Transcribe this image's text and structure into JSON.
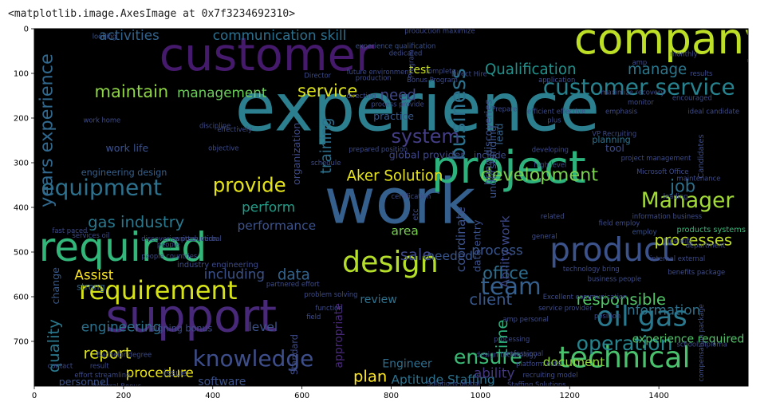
{
  "output": {
    "repr": "<matplotlib.image.AxesImage at 0x7f3234692310>"
  },
  "plot": {
    "background_color": "#000000",
    "x_ticks": [
      "0",
      "200",
      "400",
      "600",
      "800",
      "1000",
      "1200",
      "1400"
    ],
    "y_ticks": [
      "0",
      "100",
      "200",
      "300",
      "400",
      "500",
      "600",
      "700"
    ],
    "x_tick_values": [
      0,
      200,
      400,
      600,
      800,
      1000,
      1200,
      1400
    ],
    "y_tick_values": [
      0,
      100,
      200,
      300,
      400,
      500,
      600,
      700
    ],
    "xlim": [
      0,
      1600
    ],
    "ylim": [
      800,
      0
    ]
  },
  "wordcloud": {
    "words": [
      {
        "text": "experience",
        "color": "#2c7f8e"
      },
      {
        "text": "work",
        "color": "#355f8d"
      },
      {
        "text": "customer",
        "color": "#45196c"
      },
      {
        "text": "company",
        "color": "#bddf26"
      },
      {
        "text": "project",
        "color": "#2db27d"
      },
      {
        "text": "support",
        "color": "#482878"
      },
      {
        "text": "required",
        "color": "#32b67a"
      },
      {
        "text": "product",
        "color": "#3b528b"
      },
      {
        "text": "requirement",
        "color": "#d5e21a"
      },
      {
        "text": "design",
        "color": "#b5de2b"
      },
      {
        "text": "technical",
        "color": "#4ac16d"
      },
      {
        "text": "knowledge",
        "color": "#3d4e8a"
      },
      {
        "text": "customer service",
        "color": "#26828e"
      },
      {
        "text": "oil gas",
        "color": "#2a788e"
      },
      {
        "text": "equipment",
        "color": "#2c728e"
      },
      {
        "text": "provide",
        "color": "#e5e419"
      },
      {
        "text": "Manager",
        "color": "#a2da37"
      },
      {
        "text": "team",
        "color": "#355f8d"
      },
      {
        "text": "operation",
        "color": "#25848e"
      },
      {
        "text": "ensure",
        "color": "#3aba76"
      },
      {
        "text": "business",
        "color": "#2c718e"
      },
      {
        "text": "maintain",
        "color": "#8ed645"
      },
      {
        "text": "management",
        "color": "#6ccd5a"
      },
      {
        "text": "communication skill",
        "color": "#2d708e"
      },
      {
        "text": "activities",
        "color": "#33638d"
      },
      {
        "text": "service",
        "color": "#dde318"
      },
      {
        "text": "Qualification",
        "color": "#21918c"
      },
      {
        "text": "manage",
        "color": "#2a788e"
      },
      {
        "text": "need",
        "color": "#3f4889"
      },
      {
        "text": "system",
        "color": "#433e85"
      },
      {
        "text": "training",
        "color": "#2d708e"
      },
      {
        "text": "Aker Solution",
        "color": "#e7e419"
      },
      {
        "text": "development",
        "color": "#7ad151"
      },
      {
        "text": "gas industry",
        "color": "#2a788e"
      },
      {
        "text": "perform",
        "color": "#1f9e89"
      },
      {
        "text": "performance",
        "color": "#3b528b"
      },
      {
        "text": "sale",
        "color": "#3e4989"
      },
      {
        "text": "needed",
        "color": "#39568c"
      },
      {
        "text": "area",
        "color": "#7ad151"
      },
      {
        "text": "process",
        "color": "#39568c"
      },
      {
        "text": "office",
        "color": "#2e6e8e"
      },
      {
        "text": "processes",
        "color": "#c2df23"
      },
      {
        "text": "responsible",
        "color": "#52c569"
      },
      {
        "text": "client",
        "color": "#38588c"
      },
      {
        "text": "Assist",
        "color": "#fde725"
      },
      {
        "text": "including",
        "color": "#3b528b"
      },
      {
        "text": "data",
        "color": "#32648e"
      },
      {
        "text": "job",
        "color": "#2d708e"
      },
      {
        "text": "report",
        "color": "#dde318"
      },
      {
        "text": "engineering",
        "color": "#2c728e"
      },
      {
        "text": "procedure",
        "color": "#eae51a"
      },
      {
        "text": "information",
        "color": "#2c728e"
      },
      {
        "text": "level",
        "color": "#3b528b"
      },
      {
        "text": "review",
        "color": "#2c728e"
      },
      {
        "text": "quality",
        "color": "#2a788e"
      },
      {
        "text": "software",
        "color": "#3b528b"
      },
      {
        "text": "document",
        "color": "#93d741"
      },
      {
        "text": "plan",
        "color": "#fde725"
      },
      {
        "text": "Aptitude Staffing",
        "color": "#2c728e"
      },
      {
        "text": "ability",
        "color": "#453882"
      },
      {
        "text": "Engineer",
        "color": "#2e6e8e"
      },
      {
        "text": "time",
        "color": "#2db27d"
      },
      {
        "text": "Ability work",
        "color": "#3e4989"
      },
      {
        "text": "experience required",
        "color": "#52c569"
      },
      {
        "text": "years experience",
        "color": "#31688e"
      },
      {
        "text": "practice",
        "color": "#38598c"
      },
      {
        "text": "include",
        "color": "#3e4c8a"
      },
      {
        "text": "coordinate",
        "color": "#3b528b"
      },
      {
        "text": "data entry",
        "color": "#3b528b"
      },
      {
        "text": "organization",
        "color": "#3e4989"
      },
      {
        "text": "tool",
        "color": "#3e4c8a"
      },
      {
        "text": "planning",
        "color": "#2c728e"
      },
      {
        "text": "understanding",
        "color": "#3b528b"
      },
      {
        "text": "lead",
        "color": "#32648e"
      },
      {
        "text": "global provider",
        "color": "#3f4788"
      },
      {
        "text": "test",
        "color": "#c8e020"
      },
      {
        "text": "work life",
        "color": "#3b528b"
      },
      {
        "text": "engineering design",
        "color": "#35608d"
      },
      {
        "text": "industry engineering",
        "color": "#3e4c8a"
      },
      {
        "text": "people countries",
        "color": "#3e4c8a"
      },
      {
        "text": "change",
        "color": "#38598c"
      },
      {
        "text": "strong",
        "color": "#31688e"
      },
      {
        "text": "appropriate",
        "color": "#482878"
      },
      {
        "text": "Standard",
        "color": "#3e4c8a"
      },
      {
        "text": "issue",
        "color": "#3e4c8a"
      },
      {
        "text": "personnel",
        "color": "#3b528b"
      },
      {
        "text": "signing bonus",
        "color": "#3e4c8a"
      },
      {
        "text": "products systems",
        "color": "#37b878"
      },
      {
        "text": "looking",
        "color": "#3b528b"
      },
      {
        "text": "production maximize",
        "color": "#3e4c8a"
      },
      {
        "text": "experience qualification",
        "color": "#3b528b"
      },
      {
        "text": "employ",
        "color": "#3b528b"
      },
      {
        "text": "directing",
        "color": "#3e4c8a"
      },
      {
        "text": "effectively",
        "color": "#3e4c8a"
      },
      {
        "text": "maximize recovery",
        "color": "#3e4c8a"
      },
      {
        "text": "technology bring",
        "color": "#3e4c8a"
      },
      {
        "text": "business people",
        "color": "#3e4c8a"
      },
      {
        "text": "field employ",
        "color": "#3e4c8a"
      },
      {
        "text": "design technology",
        "color": "#3e4c8a"
      },
      {
        "text": "people",
        "color": "#3e4c8a"
      },
      {
        "text": "emphasis",
        "color": "#3e4c8a"
      },
      {
        "text": "compensation package",
        "color": "#3e4c8a"
      },
      {
        "text": "Solutions global",
        "color": "#3e4c8a"
      },
      {
        "text": "recruiting model",
        "color": "#3e4c8a"
      },
      {
        "text": "internal external",
        "color": "#3e4c8a"
      },
      {
        "text": "benefits package",
        "color": "#3e4c8a"
      },
      {
        "text": "high level",
        "color": "#3e4c8a"
      },
      {
        "text": "bring discoveries",
        "color": "#3b528b"
      },
      {
        "text": "developing",
        "color": "#3e4c8a"
      },
      {
        "text": "prepared position",
        "color": "#3e4c8a"
      },
      {
        "text": "maintenance",
        "color": "#3e4c8a"
      },
      {
        "text": "process provide",
        "color": "#3e4c8a"
      },
      {
        "text": "Direct Hire",
        "color": "#3e4c8a"
      },
      {
        "text": "future environment",
        "color": "#3e4c8a"
      },
      {
        "text": "Bonus Program",
        "color": "#3e4c8a"
      },
      {
        "text": "discoveries production",
        "color": "#3e4c8a"
      },
      {
        "text": "written verbal",
        "color": "#3e4c8a"
      },
      {
        "text": "services oil",
        "color": "#3e4c8a"
      },
      {
        "text": "fast paced",
        "color": "#3e4c8a"
      },
      {
        "text": "monitor",
        "color": "#3e4c8a"
      },
      {
        "text": "plus",
        "color": "#3e4c8a"
      },
      {
        "text": "identify",
        "color": "#3e4c8a"
      },
      {
        "text": "department",
        "color": "#3e4c8a"
      },
      {
        "text": "Excellent communication",
        "color": "#3e4c8a"
      },
      {
        "text": "service provider",
        "color": "#3e4c8a"
      },
      {
        "text": "position",
        "color": "#3e4c8a"
      },
      {
        "text": "Staffing Solutions",
        "color": "#3e4c8a"
      },
      {
        "text": "processing",
        "color": "#3e4c8a"
      },
      {
        "text": "professional",
        "color": "#3e4c8a"
      },
      {
        "text": "platform cuts",
        "color": "#3e4c8a"
      },
      {
        "text": "Bachelor degree",
        "color": "#3e4c8a"
      },
      {
        "text": "effort streamline",
        "color": "#3e4c8a"
      },
      {
        "text": "Referral Bonus",
        "color": "#3e4c8a"
      },
      {
        "text": "contact",
        "color": "#3e4c8a"
      },
      {
        "text": "result",
        "color": "#3e4c8a"
      },
      {
        "text": "partnered effort",
        "color": "#3e4c8a"
      },
      {
        "text": "problem solving",
        "color": "#3e4c8a"
      },
      {
        "text": "function",
        "color": "#3e4c8a"
      },
      {
        "text": "field",
        "color": "#3e4c8a"
      },
      {
        "text": "amp personal",
        "color": "#3e4c8a"
      },
      {
        "text": "school diploma",
        "color": "#3e4c8a"
      },
      {
        "text": "application",
        "color": "#3e4c8a"
      },
      {
        "text": "Prepare",
        "color": "#3e4c8a"
      },
      {
        "text": "efficient effective",
        "color": "#3e4c8a"
      },
      {
        "text": "encouraged",
        "color": "#3e4c8a"
      },
      {
        "text": "ideal candidate",
        "color": "#3e4c8a"
      },
      {
        "text": "results",
        "color": "#3e4c8a"
      },
      {
        "text": "VP Recruiting",
        "color": "#3e4c8a"
      },
      {
        "text": "project management",
        "color": "#3e4c8a"
      },
      {
        "text": "related",
        "color": "#3e4c8a"
      },
      {
        "text": "general",
        "color": "#3e4c8a"
      },
      {
        "text": "etc",
        "color": "#3e4c8a"
      },
      {
        "text": "dedicated",
        "color": "#3e4c8a"
      },
      {
        "text": "Director",
        "color": "#3e4c8a"
      },
      {
        "text": "complete",
        "color": "#3e4c8a"
      },
      {
        "text": "Candidates",
        "color": "#3e4c8a"
      },
      {
        "text": "amp",
        "color": "#3e4c8a"
      },
      {
        "text": "monthly",
        "color": "#3e4c8a"
      },
      {
        "text": "Program",
        "color": "#3e4c8a"
      },
      {
        "text": "work home",
        "color": "#3e4c8a"
      },
      {
        "text": "discipline",
        "color": "#3e4c8a"
      },
      {
        "text": "objective",
        "color": "#3e4c8a"
      },
      {
        "text": "schedule",
        "color": "#3e4c8a"
      },
      {
        "text": "certification",
        "color": "#3e4c8a"
      },
      {
        "text": "Microsoft Office",
        "color": "#3e4c8a"
      },
      {
        "text": "information business",
        "color": "#3e4c8a"
      },
      {
        "text": "leading",
        "color": "#3e4c8a"
      },
      {
        "text": "production",
        "color": "#3e4c8a"
      }
    ]
  }
}
